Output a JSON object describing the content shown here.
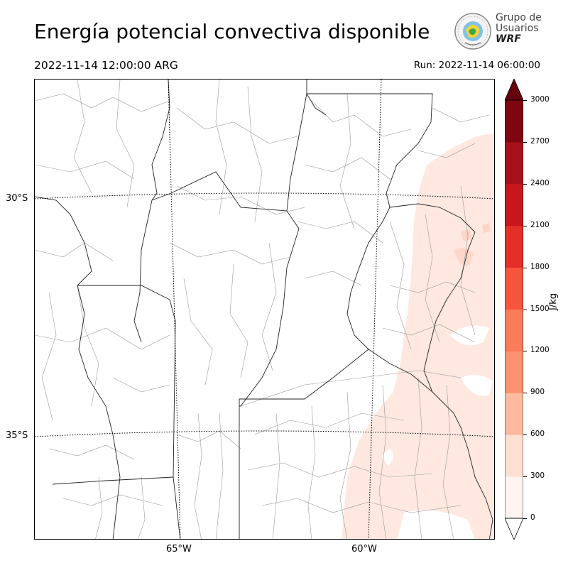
{
  "title": "Energía potencial convectiva disponible",
  "valid_time": "2022-11-14 12:00:00 ARG",
  "run_time": "Run: 2022-11-14 06:00:00",
  "logo": {
    "line1": "Grupo de",
    "line2": "Usuarios",
    "line3": "WRF"
  },
  "map": {
    "lat_labels": [
      "30°S",
      "35°S"
    ],
    "lon_labels": [
      "65°W",
      "60°W"
    ],
    "field_color": "#fee8e0"
  },
  "colorbar": {
    "unit": "J/kg",
    "ticks": [
      "0",
      "300",
      "600",
      "900",
      "1200",
      "1500",
      "1800",
      "2100",
      "2400",
      "2700",
      "3000"
    ],
    "colors": [
      "#fff5f0",
      "#fee0d2",
      "#fcbba1",
      "#fc9272",
      "#fb7b5b",
      "#f6553c",
      "#e32f27",
      "#c8171c",
      "#a8101a",
      "#7f0610",
      "#67000d"
    ]
  }
}
